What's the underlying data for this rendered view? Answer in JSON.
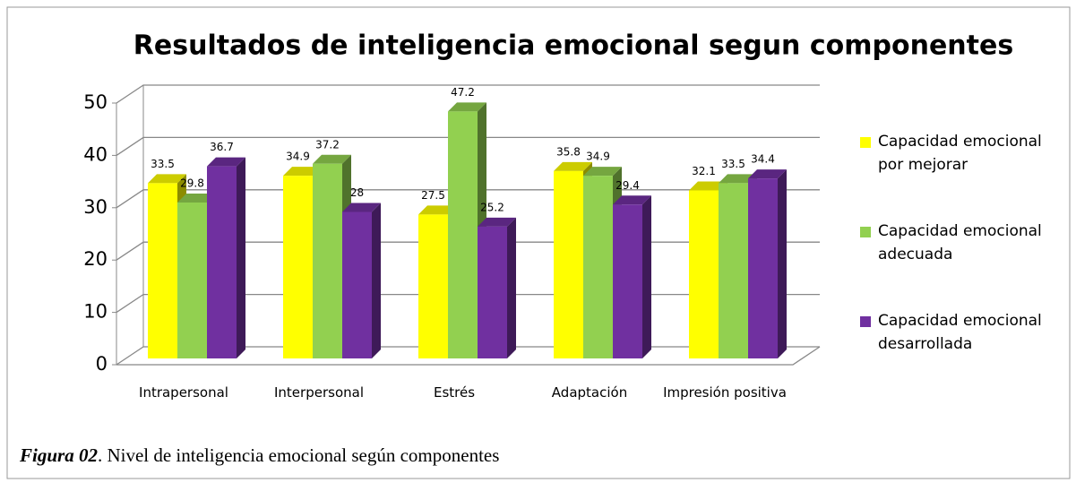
{
  "chart_data": {
    "type": "bar3d",
    "title": "Resultados de inteligencia emocional segun componentes",
    "categories": [
      "Intrapersonal",
      "Interpersonal",
      "Estrés",
      "Adaptación",
      "Impresión positiva"
    ],
    "series": [
      {
        "name": "Capacidad emocional por mejorar",
        "color": "#ffff00",
        "values": [
          33.5,
          34.9,
          27.5,
          35.8,
          32.1
        ]
      },
      {
        "name": "Capacidad emocional adecuada",
        "color": "#92d050",
        "values": [
          29.8,
          37.2,
          47.2,
          34.9,
          33.5
        ]
      },
      {
        "name": "Capacidad emocional desarrollada",
        "color": "#7030a0",
        "values": [
          36.7,
          28,
          25.2,
          29.4,
          34.4
        ]
      }
    ],
    "ylim": [
      0,
      50
    ],
    "yticks": [
      0,
      10,
      20,
      30,
      40,
      50
    ],
    "grid": true,
    "legend": "right",
    "caption": {
      "label": "Figura 02",
      "text": ". Nivel de inteligencia emocional según componentes"
    }
  }
}
